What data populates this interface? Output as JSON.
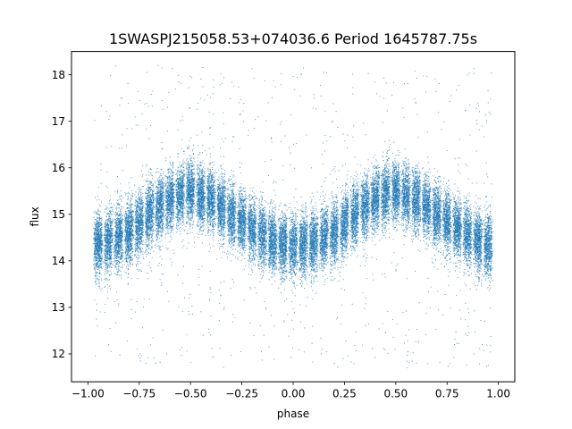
{
  "chart_data": {
    "type": "scatter",
    "title": "1SWASPJ215058.53+074036.6 Period 1645787.75s",
    "xlabel": "phase",
    "ylabel": "flux",
    "xlim": [
      -1.08,
      1.08
    ],
    "ylim": [
      11.4,
      18.5
    ],
    "xticks": [
      -1.0,
      -0.75,
      -0.5,
      -0.25,
      0.0,
      0.25,
      0.5,
      0.75,
      1.0
    ],
    "xtick_labels": [
      "−1.00",
      "−0.75",
      "−0.50",
      "−0.25",
      "0.00",
      "0.25",
      "0.50",
      "0.75",
      "1.00"
    ],
    "yticks": [
      12,
      13,
      14,
      15,
      16,
      17,
      18
    ],
    "ytick_labels": [
      "12",
      "13",
      "14",
      "15",
      "16",
      "17",
      "18"
    ],
    "grid": false,
    "legend": "none",
    "marker_color": "#1f77b4",
    "phase_profile": {
      "description_of_values": "approximate flux envelope vs phase (repeats with period 1 in phase)",
      "phase": [
        0.0,
        0.1,
        0.2,
        0.3,
        0.4,
        0.5,
        0.6,
        0.7,
        0.8,
        0.9,
        1.0
      ],
      "flux_center": [
        14.3,
        14.4,
        14.6,
        15.0,
        15.3,
        15.5,
        15.3,
        15.0,
        14.7,
        14.4,
        14.3
      ],
      "flux_spread": [
        0.6,
        0.6,
        0.6,
        0.6,
        0.6,
        0.6,
        0.6,
        0.6,
        0.6,
        0.6,
        0.6
      ]
    },
    "phase_range": [
      -1.0,
      1.0
    ],
    "stripe_phases": [
      -0.95,
      -0.9,
      -0.85,
      -0.8,
      -0.75,
      -0.7,
      -0.65,
      -0.6,
      -0.55,
      -0.5,
      -0.45,
      -0.4,
      -0.35,
      -0.3,
      -0.25,
      -0.2,
      -0.15,
      -0.1,
      -0.05,
      0.0,
      0.05,
      0.1,
      0.15,
      0.2,
      0.25,
      0.3,
      0.35,
      0.4,
      0.45,
      0.5,
      0.55,
      0.6,
      0.65,
      0.7,
      0.75,
      0.8,
      0.85,
      0.9,
      0.95
    ],
    "point_count": 30000,
    "outlier_range": [
      11.7,
      18.2
    ]
  }
}
